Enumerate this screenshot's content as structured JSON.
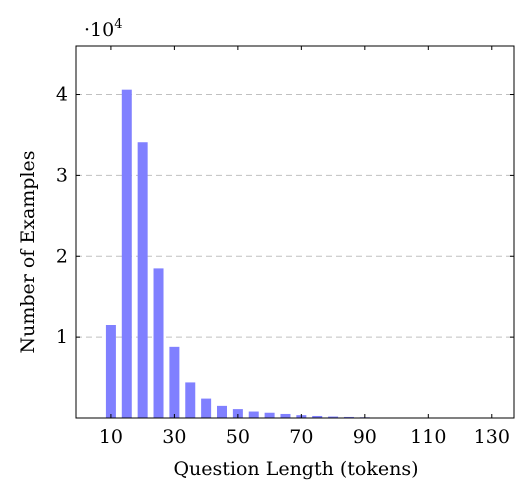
{
  "chart_data": {
    "type": "bar",
    "title": "",
    "xlabel": "Question Length (tokens)",
    "ylabel": "Number of Examples",
    "y_scale_base": "10",
    "y_scale_exponent": "4",
    "x": [
      10,
      15,
      20,
      25,
      30,
      35,
      40,
      45,
      50,
      55,
      60,
      65,
      70,
      75,
      80,
      85,
      90,
      95,
      100,
      105,
      110,
      115,
      120,
      125,
      130
    ],
    "values": [
      11500,
      40600,
      34100,
      18500,
      8800,
      4400,
      2400,
      1500,
      1100,
      800,
      650,
      500,
      350,
      250,
      180,
      130,
      90,
      60,
      40,
      30,
      20,
      15,
      10,
      8,
      5
    ],
    "xlim": [
      -1,
      137
    ],
    "ylim": [
      0,
      4.6
    ],
    "x_ticks": [
      10,
      30,
      50,
      70,
      90,
      110,
      130
    ],
    "x_tick_labels": [
      "10",
      "30",
      "50",
      "70",
      "90",
      "110",
      "130"
    ],
    "y_ticks": [
      1,
      2,
      3,
      4
    ],
    "y_tick_labels": [
      "1",
      "2",
      "3",
      "4"
    ],
    "grid": "horizontal dashed",
    "bar_color": "#8080ff",
    "grid_color": "#c0c0c0"
  }
}
